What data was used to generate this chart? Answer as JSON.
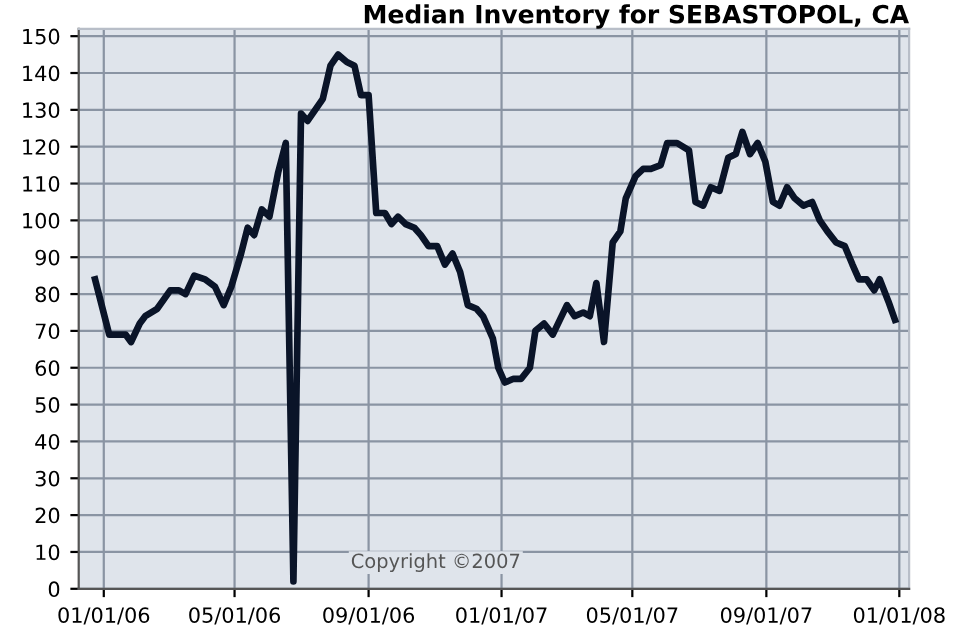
{
  "chart_data": {
    "type": "line",
    "title": "Median Inventory for SEBASTOPOL, CA",
    "annotations": [
      "Copyright ©2007"
    ],
    "xlim": [
      "2005-12-09",
      "2008-01-10"
    ],
    "xticks": [
      {
        "value": "2006-01-01",
        "label": "01/01/06"
      },
      {
        "value": "2006-05-01",
        "label": "05/01/06"
      },
      {
        "value": "2006-09-01",
        "label": "09/01/06"
      },
      {
        "value": "2007-01-01",
        "label": "01/01/07"
      },
      {
        "value": "2007-05-01",
        "label": "05/01/07"
      },
      {
        "value": "2007-09-01",
        "label": "09/01/07"
      },
      {
        "value": "2008-01-01",
        "label": "01/01/08"
      }
    ],
    "ylim": [
      0,
      152
    ],
    "yticks": [
      0,
      10,
      20,
      30,
      40,
      50,
      60,
      70,
      80,
      90,
      100,
      110,
      120,
      130,
      140,
      150
    ],
    "grid": true,
    "legend": false,
    "marker": "none",
    "line_style": "solid",
    "series": [
      {
        "color": "#0a1428",
        "x": [
          "2005-12-24",
          "2006-01-06",
          "2006-01-21",
          "2006-01-26",
          "2006-02-03",
          "2006-02-08",
          "2006-02-19",
          "2006-03-03",
          "2006-03-11",
          "2006-03-17",
          "2006-03-25",
          "2006-04-04",
          "2006-04-13",
          "2006-04-21",
          "2006-04-28",
          "2006-05-07",
          "2006-05-13",
          "2006-05-19",
          "2006-05-26",
          "2006-06-02",
          "2006-06-10",
          "2006-06-17",
          "2006-06-24",
          "2006-07-01",
          "2006-07-07",
          "2006-07-14",
          "2006-07-21",
          "2006-07-28",
          "2006-08-04",
          "2006-08-12",
          "2006-08-19",
          "2006-08-25",
          "2006-09-01",
          "2006-09-08",
          "2006-09-16",
          "2006-09-22",
          "2006-09-28",
          "2006-10-05",
          "2006-10-13",
          "2006-10-19",
          "2006-10-26",
          "2006-11-03",
          "2006-11-10",
          "2006-11-17",
          "2006-11-24",
          "2006-12-01",
          "2006-12-09",
          "2006-12-15",
          "2006-12-24",
          "2006-12-29",
          "2007-01-04",
          "2007-01-12",
          "2007-01-19",
          "2007-01-27",
          "2007-02-01",
          "2007-02-09",
          "2007-02-17",
          "2007-03-02",
          "2007-03-09",
          "2007-03-17",
          "2007-03-23",
          "2007-03-29",
          "2007-04-05",
          "2007-04-13",
          "2007-04-20",
          "2007-04-25",
          "2007-05-04",
          "2007-05-11",
          "2007-05-18",
          "2007-05-27",
          "2007-06-02",
          "2007-06-11",
          "2007-06-22",
          "2007-06-28",
          "2007-07-05",
          "2007-07-12",
          "2007-07-20",
          "2007-07-28",
          "2007-08-04",
          "2007-08-10",
          "2007-08-17",
          "2007-08-24",
          "2007-08-31",
          "2007-09-07",
          "2007-09-13",
          "2007-09-20",
          "2007-09-27",
          "2007-10-05",
          "2007-10-13",
          "2007-10-20",
          "2007-10-27",
          "2007-11-04",
          "2007-11-12",
          "2007-11-19",
          "2007-11-25",
          "2007-12-02",
          "2007-12-09",
          "2007-12-14",
          "2007-12-22",
          "2007-12-28"
        ],
        "values": [
          84,
          69,
          69,
          67,
          72,
          74,
          76,
          81,
          81,
          80,
          85,
          84,
          82,
          77,
          82,
          91,
          98,
          96,
          103,
          101,
          113,
          121,
          2,
          129,
          127,
          130,
          133,
          142,
          145,
          143,
          142,
          134,
          134,
          102,
          102,
          99,
          101,
          99,
          98,
          96,
          93,
          93,
          88,
          91,
          86,
          77,
          76,
          74,
          68,
          60,
          56,
          57,
          57,
          60,
          70,
          72,
          69,
          77,
          74,
          75,
          74,
          83,
          67,
          94,
          97,
          106,
          112,
          114,
          114,
          115,
          121,
          121,
          119,
          105,
          104,
          109,
          108,
          117,
          118,
          124,
          118,
          121,
          116,
          105,
          104,
          109,
          106,
          104,
          105,
          100,
          97,
          94,
          93,
          88,
          84,
          84,
          81,
          84,
          78,
          73
        ]
      }
    ]
  }
}
